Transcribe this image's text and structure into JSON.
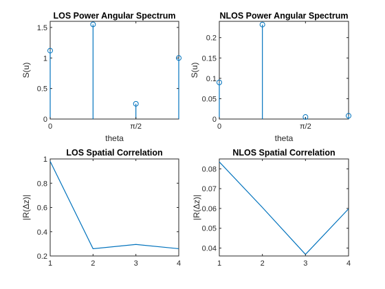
{
  "colors": {
    "series": "#0072bd",
    "axis": "#262626",
    "background": "#ffffff"
  },
  "chart_data": [
    {
      "type": "stem",
      "title": "LOS Power Angular Spectrum",
      "xlabel": "theta",
      "ylabel": "S(u)",
      "xlim": [
        0,
        2.3562
      ],
      "ylim": [
        0,
        1.6
      ],
      "xticks": [
        {
          "value": 0,
          "label": "0"
        },
        {
          "value": 1.5708,
          "label": "π/2"
        }
      ],
      "yticks": [
        {
          "value": 0,
          "label": "0"
        },
        {
          "value": 0.5,
          "label": "0.5"
        },
        {
          "value": 1,
          "label": "1"
        },
        {
          "value": 1.5,
          "label": "1.5"
        }
      ],
      "x": [
        0,
        0.7854,
        1.5708,
        2.3562
      ],
      "y": [
        1.12,
        1.55,
        0.25,
        1.0
      ],
      "marker": "circle",
      "grid": false
    },
    {
      "type": "stem",
      "title": "NLOS Power Angular Spectrum",
      "xlabel": "theta",
      "ylabel": "S(u)",
      "xlim": [
        0,
        2.3562
      ],
      "ylim": [
        0,
        0.24
      ],
      "xticks": [
        {
          "value": 0,
          "label": "0"
        },
        {
          "value": 1.5708,
          "label": "π/2"
        }
      ],
      "yticks": [
        {
          "value": 0,
          "label": "0"
        },
        {
          "value": 0.05,
          "label": "0.05"
        },
        {
          "value": 0.1,
          "label": "0.1"
        },
        {
          "value": 0.15,
          "label": "0.15"
        },
        {
          "value": 0.2,
          "label": "0.2"
        }
      ],
      "x": [
        0,
        0.7854,
        1.5708,
        2.3562
      ],
      "y": [
        0.09,
        0.232,
        0.005,
        0.008
      ],
      "marker": "circle",
      "grid": false
    },
    {
      "type": "line",
      "title": "LOS Spatial Correlation",
      "xlabel": "",
      "ylabel": "|R(Δz)|",
      "xlim": [
        1,
        4
      ],
      "ylim": [
        0.2,
        1
      ],
      "xticks": [
        {
          "value": 1,
          "label": "1"
        },
        {
          "value": 2,
          "label": "2"
        },
        {
          "value": 3,
          "label": "3"
        },
        {
          "value": 4,
          "label": "4"
        }
      ],
      "yticks": [
        {
          "value": 0.2,
          "label": "0.2"
        },
        {
          "value": 0.4,
          "label": "0.4"
        },
        {
          "value": 0.6,
          "label": "0.6"
        },
        {
          "value": 0.8,
          "label": "0.8"
        },
        {
          "value": 1,
          "label": "1"
        }
      ],
      "x": [
        1,
        2,
        3,
        4
      ],
      "y": [
        0.98,
        0.26,
        0.295,
        0.26
      ],
      "grid": false
    },
    {
      "type": "line",
      "title": "NLOS Spatial Correlation",
      "xlabel": "",
      "ylabel": "|R(Δz)|",
      "xlim": [
        1,
        4
      ],
      "ylim": [
        0.036,
        0.085
      ],
      "xticks": [
        {
          "value": 1,
          "label": "1"
        },
        {
          "value": 2,
          "label": "2"
        },
        {
          "value": 3,
          "label": "3"
        },
        {
          "value": 4,
          "label": "4"
        }
      ],
      "yticks": [
        {
          "value": 0.04,
          "label": "0.04"
        },
        {
          "value": 0.05,
          "label": "0.05"
        },
        {
          "value": 0.06,
          "label": "0.06"
        },
        {
          "value": 0.07,
          "label": "0.07"
        },
        {
          "value": 0.08,
          "label": "0.08"
        }
      ],
      "x": [
        1,
        2,
        3,
        4
      ],
      "y": [
        0.0835,
        0.0605,
        0.0368,
        0.0598
      ],
      "grid": false
    }
  ]
}
